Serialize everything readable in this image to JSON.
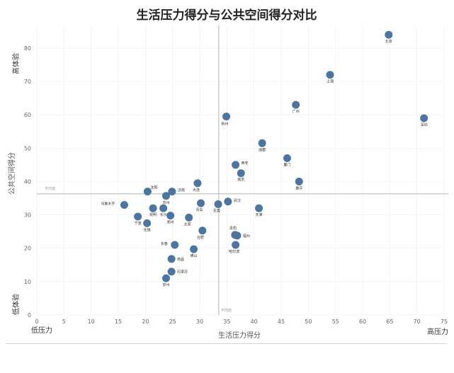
{
  "chart_data": {
    "type": "scatter",
    "title": "生活压力得分与公共空间得分对比",
    "xlabel": "生活压力得分",
    "ylabel": "公共空间得分",
    "xlim": [
      0,
      75
    ],
    "ylim": [
      0,
      87
    ],
    "x_ticks": [
      0,
      5,
      10,
      15,
      20,
      25,
      30,
      35,
      40,
      45,
      50,
      55,
      60,
      65,
      70,
      75
    ],
    "y_ticks": [
      0,
      10,
      20,
      30,
      40,
      50,
      60,
      70,
      80
    ],
    "grid": true,
    "x_end_labels": {
      "low": "低压力",
      "high": "高压力"
    },
    "y_end_labels": {
      "low": "低体验",
      "high": "高体验"
    },
    "avg_lines": {
      "x": 33.5,
      "y": 36.3,
      "x_label": "平均值",
      "y_label": "平均值"
    },
    "points": [
      {
        "name": "北京",
        "x": 64.8,
        "y": 84
      },
      {
        "name": "上海",
        "x": 54,
        "y": 72
      },
      {
        "name": "深圳",
        "x": 71.3,
        "y": 59
      },
      {
        "name": "广州",
        "x": 47.7,
        "y": 63
      },
      {
        "name": "杭州",
        "x": 34.9,
        "y": 59.5
      },
      {
        "name": "成都",
        "x": 41.5,
        "y": 51.5
      },
      {
        "name": "西安",
        "x": 36.6,
        "y": 45
      },
      {
        "name": "厦门",
        "x": 46.1,
        "y": 47
      },
      {
        "name": "南京",
        "x": 37.6,
        "y": 42.5
      },
      {
        "name": "重庆",
        "x": 48.3,
        "y": 40
      },
      {
        "name": "沈阳",
        "x": 20.4,
        "y": 37
      },
      {
        "name": "济南",
        "x": 24.9,
        "y": 37
      },
      {
        "name": "大连",
        "x": 29.6,
        "y": 39.5
      },
      {
        "name": "苏州",
        "x": 23.8,
        "y": 35.7
      },
      {
        "name": "乌鲁木齐",
        "x": 16.1,
        "y": 33
      },
      {
        "name": "青岛",
        "x": 30.2,
        "y": 33.5
      },
      {
        "name": "东莞",
        "x": 33.4,
        "y": 33.2
      },
      {
        "name": "武汉",
        "x": 35.2,
        "y": 34
      },
      {
        "name": "天津",
        "x": 40.9,
        "y": 32
      },
      {
        "name": "宁波",
        "x": 18.6,
        "y": 29.5
      },
      {
        "name": "昆明",
        "x": 21.4,
        "y": 32
      },
      {
        "name": "长沙",
        "x": 23.3,
        "y": 32
      },
      {
        "name": "郑州",
        "x": 24.6,
        "y": 29.8
      },
      {
        "name": "太原",
        "x": 28,
        "y": 29.2
      },
      {
        "name": "无锡",
        "x": 20.3,
        "y": 27.5
      },
      {
        "name": "合肥",
        "x": 30.5,
        "y": 25.3
      },
      {
        "name": "贵阳",
        "x": 36.5,
        "y": 24
      },
      {
        "name": "福州",
        "x": 36.9,
        "y": 23.8
      },
      {
        "name": "哈尔滨",
        "x": 36.6,
        "y": 21
      },
      {
        "name": "长春",
        "x": 25.4,
        "y": 21
      },
      {
        "name": "佛山",
        "x": 28.9,
        "y": 19.7
      },
      {
        "name": "南昌",
        "x": 24.8,
        "y": 16.8
      },
      {
        "name": "石家庄",
        "x": 24.8,
        "y": 13
      },
      {
        "name": "泉州",
        "x": 23.8,
        "y": 11
      }
    ]
  }
}
